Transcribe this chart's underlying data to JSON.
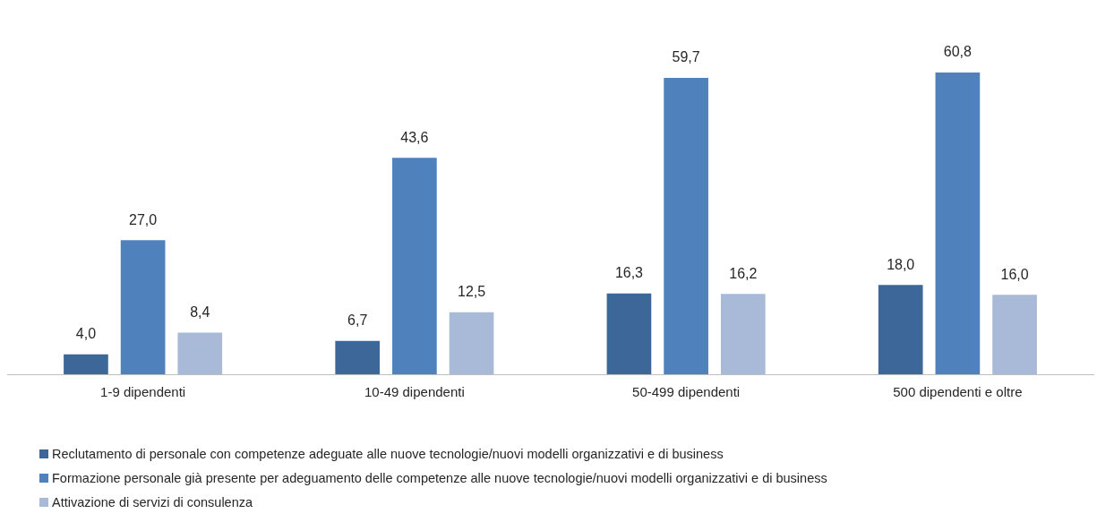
{
  "chart_data": {
    "type": "bar",
    "categories": [
      "1-9 dipendenti",
      "10-49 dipendenti",
      "50-499 dipendenti",
      "500 dipendenti e oltre"
    ],
    "series": [
      {
        "name": "Reclutamento di personale con competenze adeguate alle nuove tecnologie/nuovi modelli organizzativi e di business",
        "color": "#3e6799",
        "values": [
          4.0,
          6.7,
          16.3,
          18.0
        ],
        "value_labels": [
          "4,0",
          "6,7",
          "16,3",
          "18,0"
        ]
      },
      {
        "name": "Formazione personale già presente per adeguamento delle competenze alle nuove tecnologie/nuovi modelli organizzativi e di business",
        "color": "#4f81bd",
        "values": [
          27.0,
          43.6,
          59.7,
          60.8
        ],
        "value_labels": [
          "27,0",
          "43,6",
          "59,7",
          "60,8"
        ]
      },
      {
        "name": "Attivazione di servizi di consulenza",
        "color": "#a9b9d8",
        "values": [
          8.4,
          12.5,
          16.2,
          16.0
        ],
        "value_labels": [
          "8,4",
          "12,5",
          "16,2",
          "16,0"
        ]
      }
    ],
    "legend": "bottom",
    "grid": false
  }
}
